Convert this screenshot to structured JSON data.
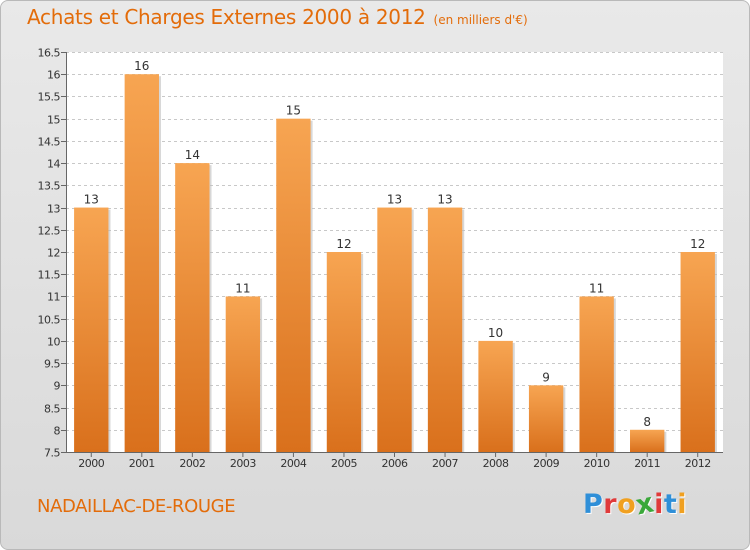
{
  "header": {
    "title": "Achats et Charges Externes 2000 à 2012",
    "subtitle": "(en milliers d'€)"
  },
  "footer": {
    "commune": "NADAILLAC-DE-ROUGE",
    "logo_text": "Proxiti",
    "logo_colors": [
      "#2f8fd8",
      "#e03a3a",
      "#f0a020",
      "#3aa83a",
      "#e03a3a",
      "#2f8fd8",
      "#f0a020"
    ]
  },
  "colors": {
    "bar_light": "#f7a552",
    "bar_dark": "#d9701c",
    "title": "#e36c0a",
    "grid": "#c8c8c8"
  },
  "chart_data": {
    "type": "bar",
    "categories": [
      "2000",
      "2001",
      "2002",
      "2003",
      "2004",
      "2005",
      "2006",
      "2007",
      "2008",
      "2009",
      "2010",
      "2011",
      "2012"
    ],
    "values": [
      13,
      16,
      14,
      11,
      15,
      12,
      13,
      13,
      10,
      9,
      11,
      8,
      12
    ],
    "ylim": [
      7.5,
      16.5
    ],
    "yticks": [
      "7.5",
      "8",
      "8.5",
      "9",
      "9.5",
      "10",
      "10.5",
      "11",
      "11.5",
      "12",
      "12.5",
      "13",
      "13.5",
      "14",
      "14.5",
      "15",
      "15.5",
      "16",
      "16.5"
    ],
    "grid": true,
    "data_labels": true
  }
}
